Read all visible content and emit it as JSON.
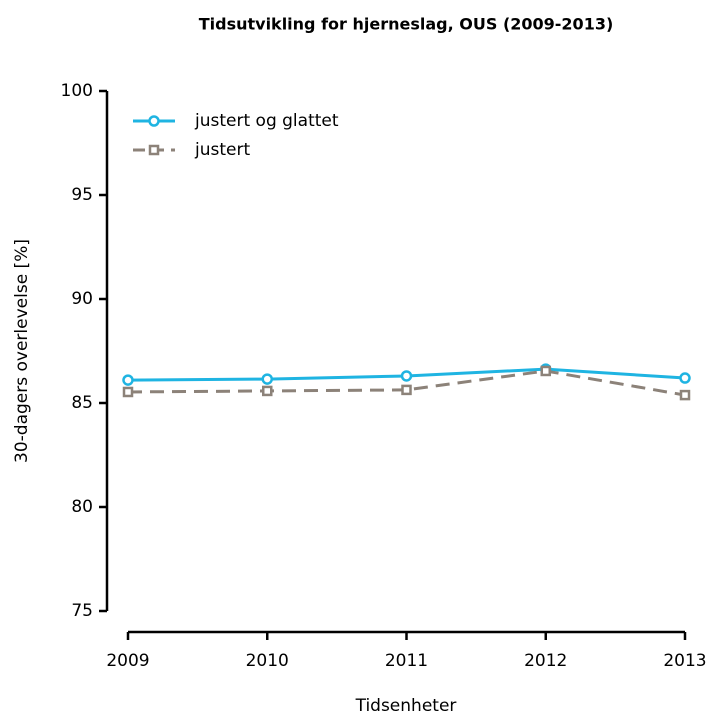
{
  "chart_data": {
    "type": "line",
    "title": "Tidsutvikling for hjerneslag, OUS (2009-2013)",
    "x_label": "Tidsenheter",
    "y_label": "30-dagers overlevelse [%]",
    "x": [
      2009,
      2010,
      2011,
      2012,
      2013
    ],
    "series": [
      {
        "name": "justert og glattet",
        "color": "#1fb4e2",
        "line_style": "solid",
        "marker": "circle",
        "values": [
          86.1,
          86.15,
          86.3,
          86.63,
          86.2
        ]
      },
      {
        "name": "justert",
        "color": "#8c8279",
        "line_style": "dashed",
        "marker": "square",
        "values": [
          85.53,
          85.58,
          85.63,
          86.54,
          85.38
        ]
      }
    ],
    "xlim": [
      2009,
      2013
    ],
    "xticks": [
      2009,
      2010,
      2011,
      2012,
      2013
    ],
    "ylim": [
      75,
      100
    ],
    "yticks": [
      75,
      80,
      85,
      90,
      95,
      100
    ],
    "grid": false,
    "legend": "top-left"
  }
}
